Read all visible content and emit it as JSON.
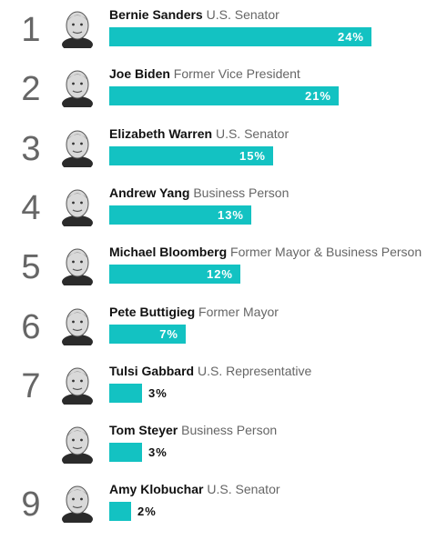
{
  "chart_data": {
    "type": "bar",
    "orientation": "horizontal",
    "bar_color": "#13c2c2",
    "xlim": [
      0,
      24
    ],
    "rows": [
      {
        "rank": "1",
        "name": "Bernie Sanders",
        "role": "U.S. Senator",
        "value": 24,
        "label": "24%",
        "avatar": "portrait-icon"
      },
      {
        "rank": "2",
        "name": "Joe Biden",
        "role": "Former Vice President",
        "value": 21,
        "label": "21%",
        "avatar": "portrait-icon"
      },
      {
        "rank": "3",
        "name": "Elizabeth Warren",
        "role": "U.S. Senator",
        "value": 15,
        "label": "15%",
        "avatar": "portrait-icon"
      },
      {
        "rank": "4",
        "name": "Andrew Yang",
        "role": "Business Person",
        "value": 13,
        "label": "13%",
        "avatar": "portrait-icon"
      },
      {
        "rank": "5",
        "name": "Michael Bloomberg",
        "role": "Former Mayor & Business Person",
        "value": 12,
        "label": "12%",
        "avatar": "portrait-icon"
      },
      {
        "rank": "6",
        "name": "Pete Buttigieg",
        "role": "Former Mayor",
        "value": 7,
        "label": "7%",
        "avatar": "portrait-icon"
      },
      {
        "rank": "7",
        "name": "Tulsi Gabbard",
        "role": "U.S. Representative",
        "value": 3,
        "label": "3%",
        "avatar": "portrait-icon"
      },
      {
        "rank": "",
        "name": "Tom Steyer",
        "role": "Business Person",
        "value": 3,
        "label": "3%",
        "avatar": "portrait-icon"
      },
      {
        "rank": "9",
        "name": "Amy Klobuchar",
        "role": "U.S. Senator",
        "value": 2,
        "label": "2%",
        "avatar": "portrait-icon"
      }
    ]
  }
}
